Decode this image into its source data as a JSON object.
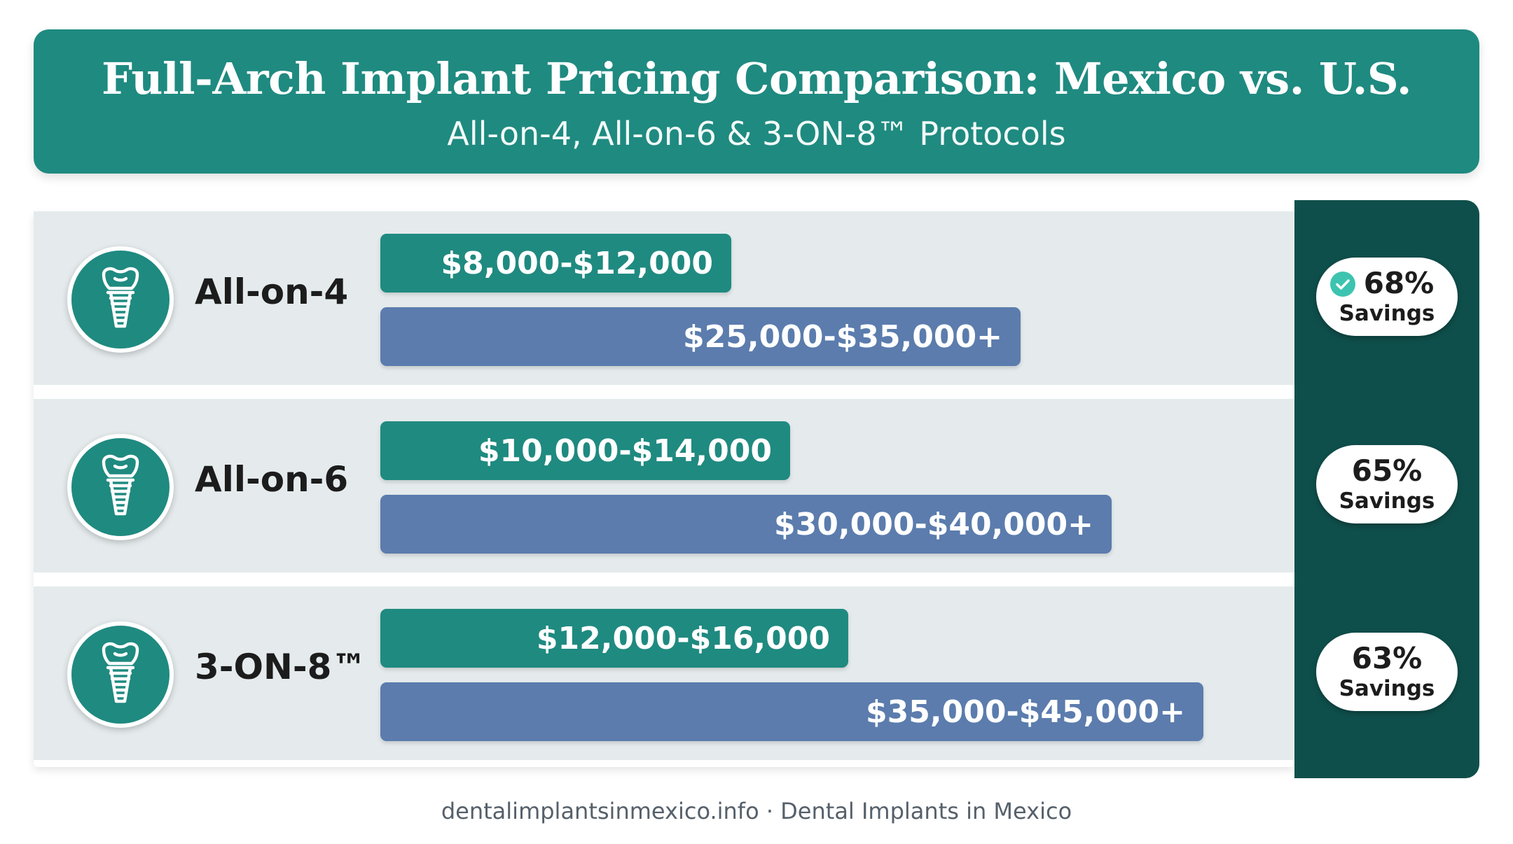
{
  "header": {
    "title": "Full-Arch Implant Pricing Comparison: Mexico vs. U.S.",
    "subtitle": "All-on-4, All-on-6 & 3-ON-8™ Protocols"
  },
  "footer": {
    "text": "dentalimplantsinmexico.info · Dental Implants in Mexico"
  },
  "colors": {
    "header": "#1f8a80",
    "mexico_bar": "#1f8a80",
    "us_bar": "#5b7cad",
    "savings_column": "#0f4f4b",
    "check": "#3cc4b0"
  },
  "rows": [
    {
      "label": "All-on-4",
      "icon": "dental-implant-icon",
      "mexico_label": "$8,000-$12,000",
      "us_label": "$25,000-$35,000+",
      "savings_pct": "68%",
      "savings_label": "Savings"
    },
    {
      "label": "All-on-6",
      "icon": "dental-implant-icon",
      "mexico_label": "$10,000-$14,000",
      "us_label": "$30,000-$40,000+",
      "savings_pct": "65%",
      "savings_label": "Savings"
    },
    {
      "label": "3-ON-8™",
      "icon": "dental-implant-icon",
      "mexico_label": "$12,000-$16,000",
      "us_label": "$35,000-$45,000+",
      "savings_pct": "63%",
      "savings_label": "Savings"
    }
  ],
  "chart_data": {
    "type": "bar",
    "orientation": "horizontal",
    "title": "Full-Arch Implant Pricing Comparison: Mexico vs. U.S.",
    "subtitle": "All-on-4, All-on-6 & 3-ON-8™ Protocols",
    "categories": [
      "All-on-4",
      "All-on-6",
      "3-ON-8™"
    ],
    "series": [
      {
        "color": "#1f8a80",
        "labels": [
          "$8,000-$12,000",
          "$10,000-$14,000",
          "$12,000-$16,000"
        ],
        "ranges": [
          [
            8000,
            12000
          ],
          [
            10000,
            14000
          ],
          [
            12000,
            16000
          ]
        ]
      },
      {
        "color": "#5b7cad",
        "labels": [
          "$25,000-$35,000+",
          "$30,000-$40,000+",
          "$35,000-$45,000+"
        ],
        "ranges": [
          [
            25000,
            35000
          ],
          [
            30000,
            40000
          ],
          [
            35000,
            45000
          ]
        ]
      }
    ],
    "savings": [
      "68%",
      "65%",
      "63%"
    ]
  }
}
